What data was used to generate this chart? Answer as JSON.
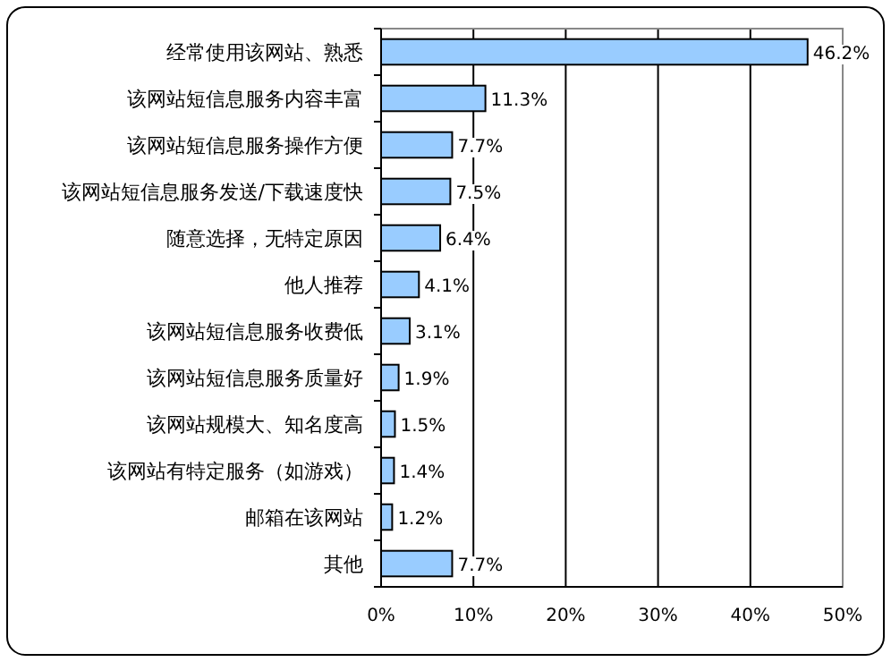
{
  "chart_data": {
    "type": "bar",
    "orientation": "horizontal",
    "categories": [
      "经常使用该网站、熟悉",
      "该网站短信息服务内容丰富",
      "该网站短信息服务操作方便",
      "该网站短信息服务发送/下载速度快",
      "随意选择，无特定原因",
      "他人推荐",
      "该网站短信息服务收费低",
      "该网站短信息服务质量好",
      "该网站规模大、知名度高",
      "该网站有特定服务（如游戏）",
      "邮箱在该网站",
      "其他"
    ],
    "values": [
      46.2,
      11.3,
      7.7,
      7.5,
      6.4,
      4.1,
      3.1,
      1.9,
      1.5,
      1.4,
      1.2,
      7.7
    ],
    "value_labels": [
      "46.2%",
      "11.3%",
      "7.7%",
      "7.5%",
      "6.4%",
      "4.1%",
      "3.1%",
      "1.9%",
      "1.5%",
      "1.4%",
      "1.2%",
      "7.7%"
    ],
    "color": "#99ccff",
    "xlim": [
      0,
      50
    ],
    "xticks": [
      {
        "value": 0,
        "label": "0%"
      },
      {
        "value": 10,
        "label": "10%"
      },
      {
        "value": 20,
        "label": "20%"
      },
      {
        "value": 30,
        "label": "30%"
      },
      {
        "value": 40,
        "label": "40%"
      },
      {
        "value": 50,
        "label": "50%"
      }
    ],
    "grid": "x"
  }
}
